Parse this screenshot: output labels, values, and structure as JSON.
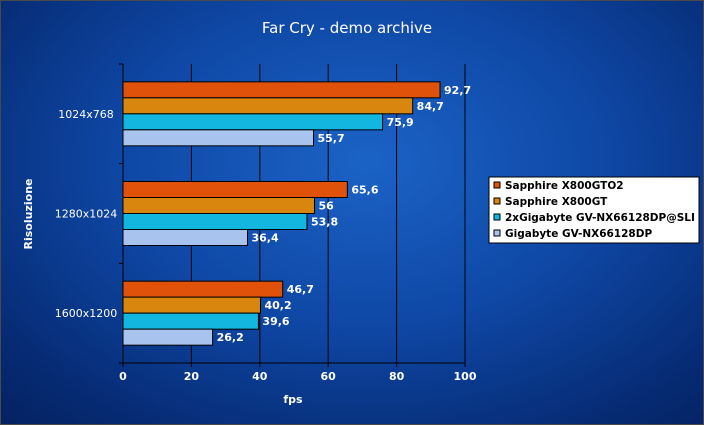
{
  "chart_data": {
    "type": "bar",
    "orientation": "horizontal",
    "title": "Far Cry - demo archive",
    "xlabel": "fps",
    "ylabel": "Risoluzione",
    "xlim": [
      0,
      100
    ],
    "xticks": [
      0,
      20,
      40,
      60,
      80,
      100
    ],
    "grid": true,
    "legend_position": "right",
    "categories": [
      "1024x768",
      "1280x1024",
      "1600x1200"
    ],
    "series": [
      {
        "name": "Sapphire X800GTO2",
        "color": "#e0520a",
        "values": [
          92.7,
          65.6,
          46.7
        ],
        "labels": [
          "92,7",
          "65,6",
          "46,7"
        ]
      },
      {
        "name": "Sapphire X800GT",
        "color": "#d9860e",
        "values": [
          84.7,
          56,
          40.2
        ],
        "labels": [
          "84,7",
          "56",
          "40,2"
        ]
      },
      {
        "name": "2xGigabyte GV-NX66128DP@SLI",
        "color": "#12b6de",
        "values": [
          75.9,
          53.8,
          39.6
        ],
        "labels": [
          "75,9",
          "53,8",
          "39,6"
        ]
      },
      {
        "name": "Gigabyte GV-NX66128DP",
        "color": "#a8c4ee",
        "values": [
          55.7,
          36.4,
          26.2
        ],
        "labels": [
          "55,7",
          "36,4",
          "26,2"
        ]
      }
    ]
  }
}
